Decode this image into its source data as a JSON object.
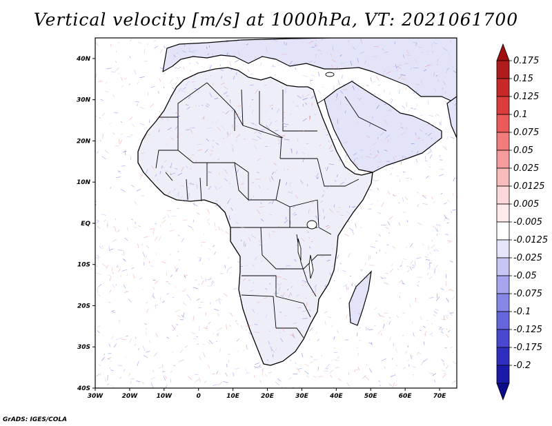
{
  "title": "Vertical velocity [m/s] at 1000hPa, VT: 2021061700",
  "credit": "GrADS: IGES/COLA",
  "map": {
    "lon_range": [
      -30,
      75
    ],
    "lat_range": [
      -40,
      45
    ],
    "lon_ticks": [
      {
        "value": -30,
        "label": "30W"
      },
      {
        "value": -20,
        "label": "20W"
      },
      {
        "value": -10,
        "label": "10W"
      },
      {
        "value": 0,
        "label": "0"
      },
      {
        "value": 10,
        "label": "10E"
      },
      {
        "value": 20,
        "label": "20E"
      },
      {
        "value": 30,
        "label": "30E"
      },
      {
        "value": 40,
        "label": "40E"
      },
      {
        "value": 50,
        "label": "50E"
      },
      {
        "value": 60,
        "label": "60E"
      },
      {
        "value": 70,
        "label": "70E"
      }
    ],
    "lat_ticks": [
      {
        "value": 40,
        "label": "40N"
      },
      {
        "value": 30,
        "label": "30N"
      },
      {
        "value": 20,
        "label": "20N"
      },
      {
        "value": 10,
        "label": "10N"
      },
      {
        "value": 0,
        "label": "EQ"
      },
      {
        "value": -10,
        "label": "10S"
      },
      {
        "value": -20,
        "label": "20S"
      },
      {
        "value": -30,
        "label": "30S"
      },
      {
        "value": -40,
        "label": "40S"
      }
    ]
  },
  "colorbar": {
    "levels": [
      {
        "label": "0.175",
        "color": "#b01c1c"
      },
      {
        "label": "0.15",
        "color": "#c82828"
      },
      {
        "label": "0.125",
        "color": "#dc3c3c"
      },
      {
        "label": "0.1",
        "color": "#ea5a5a"
      },
      {
        "label": "0.075",
        "color": "#f27c7c"
      },
      {
        "label": "0.05",
        "color": "#f69c9c"
      },
      {
        "label": "0.025",
        "color": "#f9bcbc"
      },
      {
        "label": "0.0125",
        "color": "#fcd8d8"
      },
      {
        "label": "0.005",
        "color": "#feeaea"
      },
      {
        "label": "-0.005",
        "color": "#ffffff"
      },
      {
        "label": "-0.0125",
        "color": "#e6e6fb"
      },
      {
        "label": "-0.025",
        "color": "#c6c6f5"
      },
      {
        "label": "-0.05",
        "color": "#a6a6ee"
      },
      {
        "label": "-0.075",
        "color": "#8686e6"
      },
      {
        "label": "-0.1",
        "color": "#6666dc"
      },
      {
        "label": "-0.125",
        "color": "#4848d0"
      },
      {
        "label": "-0.175",
        "color": "#2e2ec0"
      },
      {
        "label": "-0.2",
        "color": "#1a1aa8"
      },
      {
        "label": "",
        "color": "#0c0c8a"
      }
    ],
    "top_color": "#a01010"
  }
}
